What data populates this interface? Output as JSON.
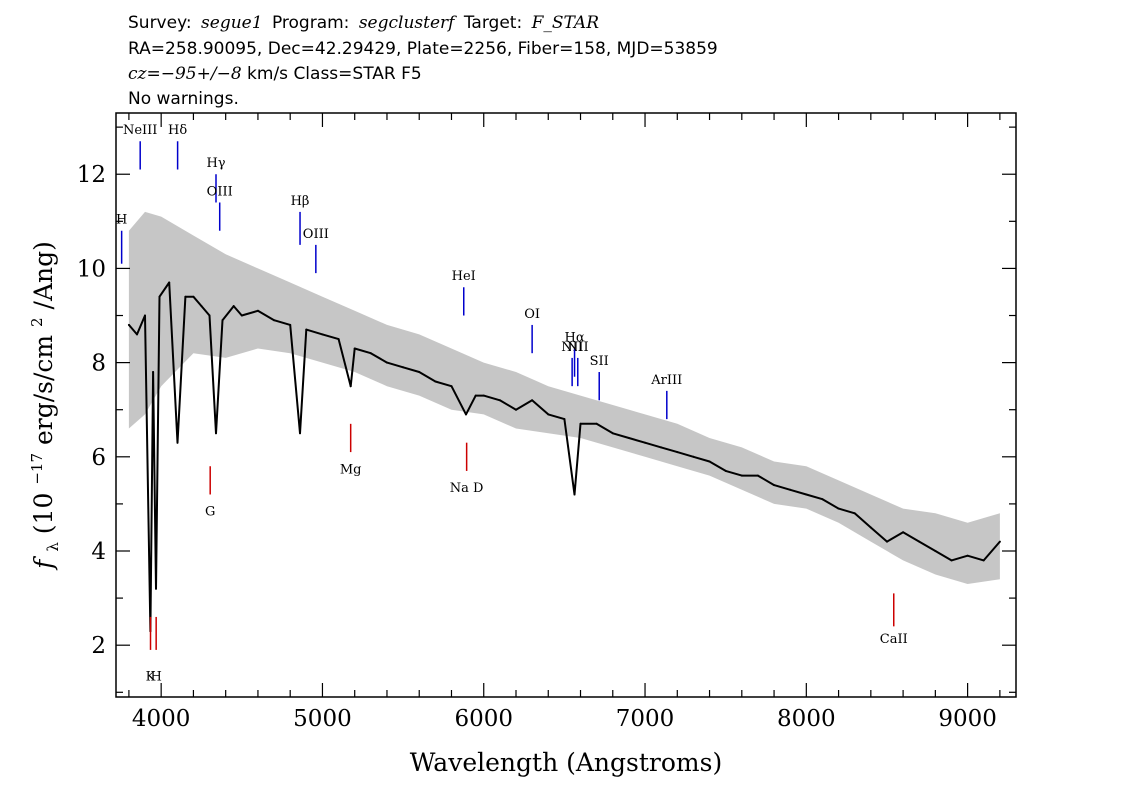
{
  "header": {
    "line1": {
      "survey_label": "Survey:",
      "survey": "segue1",
      "program_label": "Program:",
      "program": "segclusterf",
      "target_label": "Target:",
      "target": "F_STAR"
    },
    "line2": "RA=258.90095, Dec=42.29429, Plate=2256, Fiber=158, MJD=53859",
    "line3": {
      "cz": "cz=−95+/−8",
      "rest": " km/s Class=STAR F5"
    },
    "line4": "No warnings."
  },
  "colors": {
    "flux": "#000000",
    "error_band": "#c0c0c0",
    "emission": "#0000cc",
    "absorption": "#cc0000",
    "frame": "#000000"
  },
  "chart_data": {
    "type": "line",
    "xlabel": "Wavelength (Angstroms)",
    "ylabel": "fλ (10⁻¹⁷ erg/s/cm²/Ang)",
    "ylabel_parts": {
      "f": "f",
      "lambda": "λ",
      "open": " (10",
      "exp": "−17",
      "mid": " erg/s/cm",
      "exp2": "2",
      "close": "/Ang)"
    },
    "xlim": [
      3720,
      9300
    ],
    "ylim": [
      0.9,
      13.3
    ],
    "xticks": [
      4000,
      5000,
      6000,
      7000,
      8000,
      9000
    ],
    "yticks": [
      2,
      4,
      6,
      8,
      10,
      12
    ],
    "x_minor_step": 200,
    "y_minor_step": 1,
    "grid": false,
    "series": [
      {
        "role": "flux",
        "x": [
          3800,
          3850,
          3900,
          3933,
          3950,
          3968,
          3990,
          4050,
          4101,
          4150,
          4200,
          4250,
          4300,
          4340,
          4380,
          4450,
          4500,
          4600,
          4700,
          4800,
          4861,
          4900,
          5000,
          5100,
          5175,
          5200,
          5300,
          5400,
          5500,
          5600,
          5700,
          5800,
          5890,
          5950,
          6000,
          6100,
          6200,
          6300,
          6400,
          6500,
          6563,
          6600,
          6700,
          6800,
          6900,
          7000,
          7100,
          7200,
          7300,
          7400,
          7500,
          7600,
          7700,
          7800,
          7900,
          8000,
          8100,
          8200,
          8300,
          8400,
          8500,
          8600,
          8700,
          8800,
          8900,
          9000,
          9100,
          9200
        ],
        "y": [
          8.8,
          8.6,
          9.0,
          2.3,
          7.8,
          3.2,
          9.4,
          9.7,
          6.3,
          9.4,
          9.4,
          9.2,
          9.0,
          6.5,
          8.9,
          9.2,
          9.0,
          9.1,
          8.9,
          8.8,
          6.5,
          8.7,
          8.6,
          8.5,
          7.5,
          8.3,
          8.2,
          8.0,
          7.9,
          7.8,
          7.6,
          7.5,
          6.9,
          7.3,
          7.3,
          7.2,
          7.0,
          7.2,
          6.9,
          6.8,
          5.2,
          6.7,
          6.7,
          6.5,
          6.4,
          6.3,
          6.2,
          6.1,
          6.0,
          5.9,
          5.7,
          5.6,
          5.6,
          5.4,
          5.3,
          5.2,
          5.1,
          4.9,
          4.8,
          4.5,
          4.2,
          4.4,
          4.2,
          4.0,
          3.8,
          3.9,
          3.8,
          4.2
        ]
      },
      {
        "role": "error",
        "x": [
          3800,
          3900,
          4000,
          4200,
          4400,
          4600,
          4800,
          5000,
          5200,
          5400,
          5600,
          5800,
          6000,
          6200,
          6400,
          6600,
          6800,
          7000,
          7200,
          7400,
          7600,
          7800,
          8000,
          8200,
          8400,
          8600,
          8800,
          9000,
          9200
        ],
        "lower": [
          6.6,
          6.9,
          7.5,
          8.2,
          8.1,
          8.3,
          8.2,
          8.0,
          7.8,
          7.5,
          7.3,
          7.0,
          6.9,
          6.6,
          6.5,
          6.4,
          6.2,
          6.0,
          5.8,
          5.6,
          5.3,
          5.0,
          4.9,
          4.6,
          4.2,
          3.8,
          3.5,
          3.3,
          3.4
        ],
        "upper": [
          10.8,
          11.2,
          11.1,
          10.7,
          10.3,
          10.0,
          9.7,
          9.4,
          9.1,
          8.8,
          8.6,
          8.3,
          8.0,
          7.8,
          7.5,
          7.3,
          7.1,
          6.9,
          6.7,
          6.4,
          6.2,
          5.9,
          5.8,
          5.5,
          5.2,
          4.9,
          4.8,
          4.6,
          4.8
        ]
      }
    ],
    "emission_lines": [
      {
        "label": "H",
        "x": 3755,
        "y0": 10.1,
        "y1": 10.8,
        "label_y": 10.95
      },
      {
        "label": "NeIII",
        "x": 3870,
        "y0": 12.1,
        "y1": 12.7,
        "label_y": 12.85
      },
      {
        "label": "Hδ",
        "x": 4102,
        "y0": 12.1,
        "y1": 12.7,
        "label_y": 12.85
      },
      {
        "label": "Hγ",
        "x": 4340,
        "y0": 11.4,
        "y1": 12.0,
        "label_y": 12.15
      },
      {
        "label": "OIII",
        "x": 4363,
        "y0": 10.8,
        "y1": 11.4,
        "label_y": 11.55
      },
      {
        "label": "Hβ",
        "x": 4861,
        "y0": 10.5,
        "y1": 11.2,
        "label_y": 11.35
      },
      {
        "label": "OIII",
        "x": 4959,
        "y0": 9.9,
        "y1": 10.5,
        "label_y": 10.65
      },
      {
        "label": "HeI",
        "x": 5876,
        "y0": 9.0,
        "y1": 9.6,
        "label_y": 9.75
      },
      {
        "label": "OI",
        "x": 6300,
        "y0": 8.2,
        "y1": 8.8,
        "label_y": 8.95
      },
      {
        "label": "NII",
        "x": 6548,
        "y0": 7.5,
        "y1": 8.1,
        "label_y": 8.25
      },
      {
        "label": "Hα",
        "x": 6563,
        "y0": 7.7,
        "y1": 8.3,
        "label_y": 8.45
      },
      {
        "label": "NII",
        "x": 6583,
        "y0": 7.5,
        "y1": 8.1,
        "label_y": 8.25
      },
      {
        "label": "SII",
        "x": 6716,
        "y0": 7.2,
        "y1": 7.8,
        "label_y": 7.95
      },
      {
        "label": "ArIII",
        "x": 7135,
        "y0": 6.8,
        "y1": 7.4,
        "label_y": 7.55
      }
    ],
    "absorption_lines": [
      {
        "label": "K",
        "x": 3934,
        "y0": 1.9,
        "y1": 2.6,
        "label_y": 1.25
      },
      {
        "label": "H",
        "x": 3969,
        "y0": 1.9,
        "y1": 2.6,
        "label_y": 1.25
      },
      {
        "label": "G",
        "x": 4304,
        "y0": 5.2,
        "y1": 5.8,
        "label_y": 4.75
      },
      {
        "label": "Mg",
        "x": 5175,
        "y0": 6.1,
        "y1": 6.7,
        "label_y": 5.65
      },
      {
        "label": "Na D",
        "x": 5894,
        "y0": 5.7,
        "y1": 6.3,
        "label_y": 5.25
      },
      {
        "label": "CaII",
        "x": 8542,
        "y0": 2.4,
        "y1": 3.1,
        "label_y": 2.05
      }
    ]
  }
}
